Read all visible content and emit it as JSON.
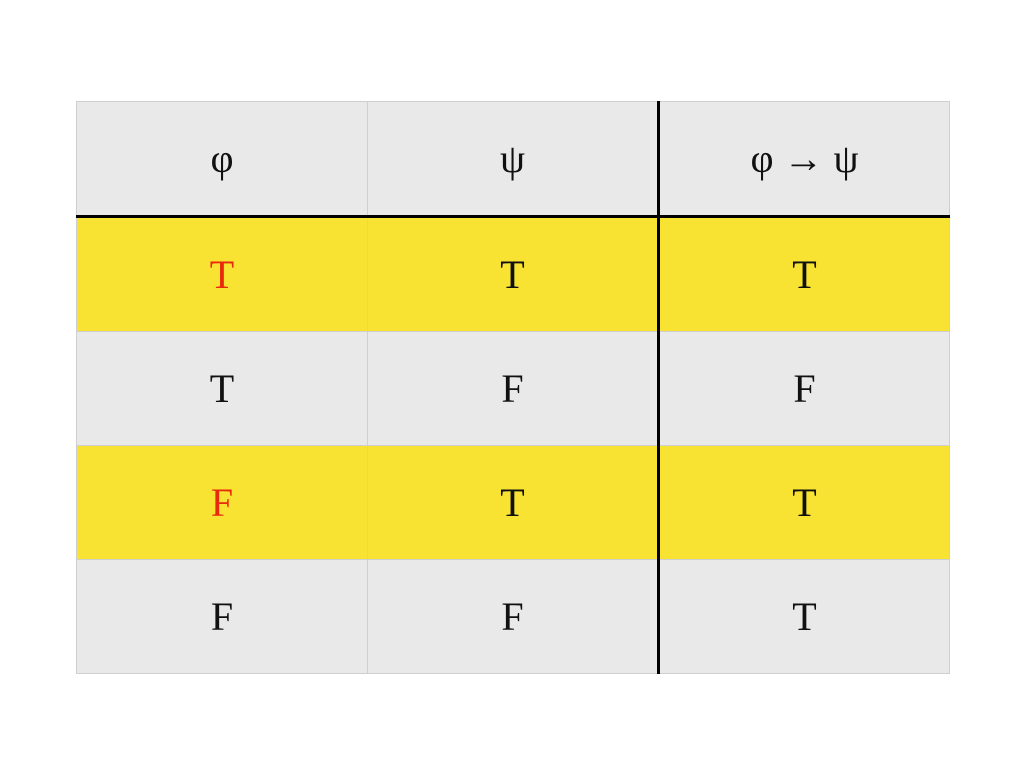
{
  "table": {
    "headers": [
      "φ",
      "ψ",
      "φ → ψ"
    ],
    "rows": [
      [
        "T",
        "T",
        "T"
      ],
      [
        "T",
        "F",
        "F"
      ],
      [
        "F",
        "T",
        "T"
      ],
      [
        "F",
        "F",
        "T"
      ]
    ]
  },
  "colors": {
    "header_background": "#e9e9e9",
    "highlight_row": "#f8e232",
    "plain_row": "#e9e9e9",
    "highlight_text": "#e8290b",
    "text": "#111111",
    "divider": "#000000"
  }
}
